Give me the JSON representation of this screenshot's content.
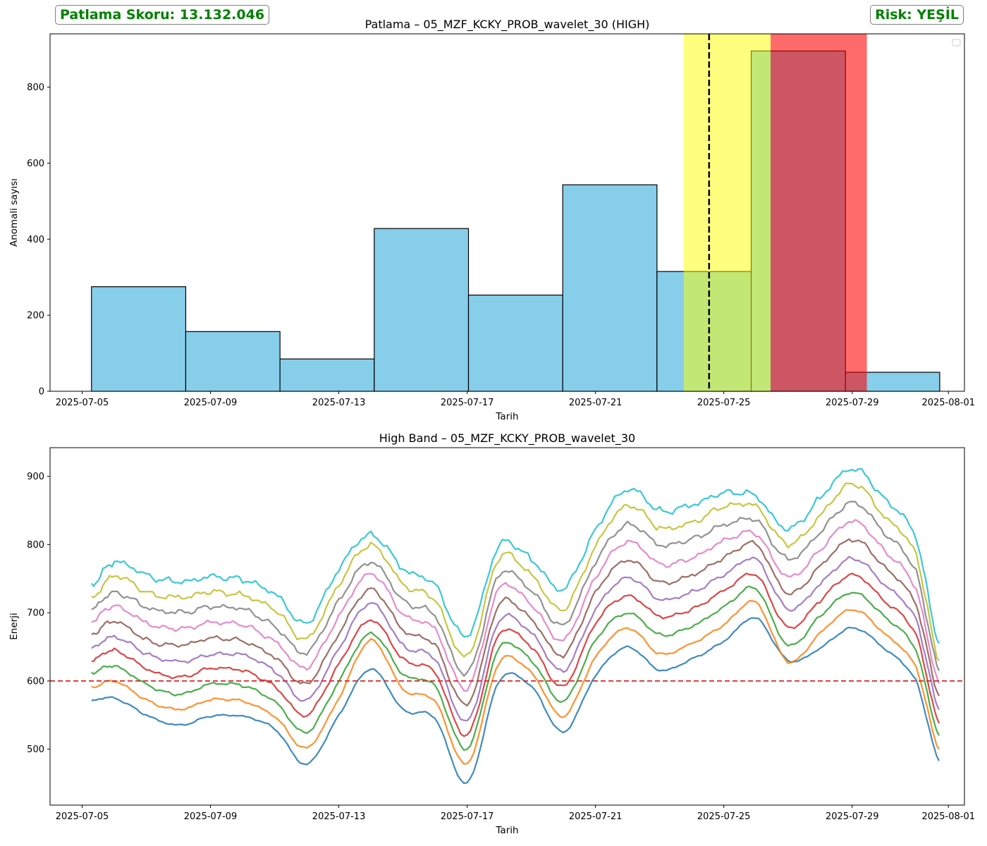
{
  "header": {
    "score_text": "Patlama Skoru: 13.132.046",
    "risk_text": "Risk: YEŞİL",
    "risk_color": "#008000"
  },
  "chart_data": [
    {
      "type": "bar",
      "title": "Patlama – 05_MZF_KCKY_PROB_wavelet_30 (HIGH)",
      "xlabel": "Tarih",
      "ylabel": "Anomali sayısı",
      "xlim": [
        "2025-07-04T00:00",
        "2025-08-01T12:00"
      ],
      "ylim": [
        0,
        940
      ],
      "yticks": [
        0,
        200,
        400,
        600,
        800
      ],
      "xticks": [
        "2025-07-05",
        "2025-07-09",
        "2025-07-13",
        "2025-07-17",
        "2025-07-21",
        "2025-07-25",
        "2025-07-29",
        "2025-08-01"
      ],
      "bar_color": "#87CEEB",
      "bins": [
        {
          "start": "2025-07-05T07:00",
          "end": "2025-07-08T05:30",
          "value": 275
        },
        {
          "start": "2025-07-08T05:30",
          "end": "2025-07-11T04:00",
          "value": 157
        },
        {
          "start": "2025-07-11T04:00",
          "end": "2025-07-14T02:30",
          "value": 85
        },
        {
          "start": "2025-07-14T02:30",
          "end": "2025-07-17T01:00",
          "value": 428
        },
        {
          "start": "2025-07-17T01:00",
          "end": "2025-07-19T23:30",
          "value": 253
        },
        {
          "start": "2025-07-19T23:30",
          "end": "2025-07-22T22:00",
          "value": 543
        },
        {
          "start": "2025-07-22T22:00",
          "end": "2025-07-25T20:30",
          "value": 315
        },
        {
          "start": "2025-07-25T20:30",
          "end": "2025-07-28T19:00",
          "value": 895
        },
        {
          "start": "2025-07-28T19:00",
          "end": "2025-07-31T17:30",
          "value": 50
        }
      ],
      "highlight_spans": [
        {
          "start": "2025-07-23T18:00",
          "end": "2025-07-26T11:00",
          "color": "#FFFF00",
          "alpha": 0.5
        },
        {
          "start": "2025-07-26T11:00",
          "end": "2025-07-29T11:00",
          "color": "#FF0000",
          "alpha": 0.58
        }
      ],
      "vline": {
        "x": "2025-07-24T13:00",
        "color": "#000000",
        "style": "dashed"
      },
      "legend": {
        "placement": "upper right",
        "entries": []
      }
    },
    {
      "type": "line",
      "title": "High Band – 05_MZF_KCKY_PROB_wavelet_30",
      "xlabel": "Tarih",
      "ylabel": "Enerji",
      "xlim": [
        "2025-07-04T00:00",
        "2025-08-01T12:00"
      ],
      "ylim": [
        418,
        942
      ],
      "yticks": [
        500,
        600,
        700,
        800,
        900
      ],
      "xticks": [
        "2025-07-05",
        "2025-07-09",
        "2025-07-13",
        "2025-07-17",
        "2025-07-21",
        "2025-07-25",
        "2025-07-29",
        "2025-08-01"
      ],
      "threshold": {
        "y": 600,
        "color": "#d62728",
        "style": "dashed"
      },
      "x": [
        "2025-07-05T07:00",
        "2025-07-06T00:00",
        "2025-07-07T00:00",
        "2025-07-08T00:00",
        "2025-07-09T00:00",
        "2025-07-10T00:00",
        "2025-07-11T00:00",
        "2025-07-12T00:00",
        "2025-07-13T00:00",
        "2025-07-14T00:00",
        "2025-07-15T00:00",
        "2025-07-16T00:00",
        "2025-07-17T00:00",
        "2025-07-18T00:00",
        "2025-07-19T00:00",
        "2025-07-20T00:00",
        "2025-07-21T00:00",
        "2025-07-22T00:00",
        "2025-07-23T00:00",
        "2025-07-24T00:00",
        "2025-07-25T00:00",
        "2025-07-26T00:00",
        "2025-07-27T00:00",
        "2025-07-28T00:00",
        "2025-07-29T00:00",
        "2025-07-30T00:00",
        "2025-07-31T00:00",
        "2025-07-31T17:00"
      ],
      "series": [
        {
          "color": "#1f77b4",
          "values": [
            571,
            575,
            550,
            535,
            548,
            548,
            530,
            478,
            550,
            618,
            558,
            545,
            450,
            600,
            592,
            525,
            608,
            650,
            616,
            632,
            658,
            692,
            630,
            648,
            678,
            648,
            600,
            483
          ]
        },
        {
          "color": "#ff7f0e",
          "values": [
            590,
            600,
            572,
            558,
            572,
            570,
            548,
            502,
            575,
            660,
            588,
            570,
            478,
            627,
            612,
            548,
            635,
            678,
            640,
            655,
            682,
            715,
            628,
            670,
            705,
            670,
            620,
            500
          ]
        },
        {
          "color": "#2ca02c",
          "values": [
            612,
            622,
            595,
            580,
            595,
            593,
            570,
            525,
            600,
            670,
            610,
            592,
            500,
            648,
            630,
            570,
            660,
            700,
            668,
            680,
            708,
            735,
            652,
            695,
            730,
            695,
            645,
            520
          ]
        },
        {
          "color": "#d62728",
          "values": [
            630,
            645,
            618,
            605,
            618,
            615,
            592,
            550,
            625,
            690,
            632,
            612,
            520,
            668,
            650,
            592,
            685,
            725,
            695,
            705,
            732,
            755,
            678,
            718,
            756,
            718,
            668,
            538
          ]
        },
        {
          "color": "#9467bd",
          "values": [
            648,
            665,
            640,
            628,
            638,
            638,
            615,
            572,
            648,
            715,
            652,
            632,
            540,
            688,
            670,
            615,
            705,
            752,
            720,
            730,
            755,
            778,
            705,
            742,
            780,
            742,
            690,
            558
          ]
        },
        {
          "color": "#8c564b",
          "values": [
            668,
            688,
            660,
            652,
            662,
            658,
            635,
            596,
            670,
            735,
            675,
            652,
            565,
            712,
            690,
            638,
            730,
            778,
            745,
            755,
            780,
            800,
            728,
            768,
            808,
            768,
            712,
            578
          ]
        },
        {
          "color": "#e377c2",
          "values": [
            688,
            710,
            685,
            676,
            685,
            682,
            658,
            620,
            695,
            758,
            698,
            675,
            588,
            735,
            712,
            660,
            752,
            805,
            772,
            780,
            805,
            815,
            752,
            792,
            835,
            792,
            735,
            596
          ]
        },
        {
          "color": "#7f7f7f",
          "values": [
            705,
            730,
            708,
            700,
            708,
            705,
            680,
            642,
            718,
            775,
            718,
            695,
            610,
            755,
            732,
            682,
            775,
            830,
            800,
            808,
            828,
            835,
            778,
            818,
            862,
            818,
            760,
            615
          ]
        },
        {
          "color": "#bcbd22",
          "values": [
            720,
            755,
            730,
            722,
            730,
            725,
            705,
            662,
            742,
            800,
            742,
            718,
            635,
            780,
            755,
            705,
            798,
            858,
            825,
            832,
            855,
            855,
            800,
            842,
            890,
            842,
            785,
            630
          ]
        },
        {
          "color": "#17becf",
          "values": [
            741,
            775,
            755,
            745,
            752,
            748,
            728,
            685,
            765,
            815,
            765,
            740,
            665,
            798,
            778,
            735,
            822,
            882,
            850,
            858,
            875,
            870,
            822,
            868,
            912,
            868,
            810,
            655
          ]
        }
      ]
    }
  ]
}
